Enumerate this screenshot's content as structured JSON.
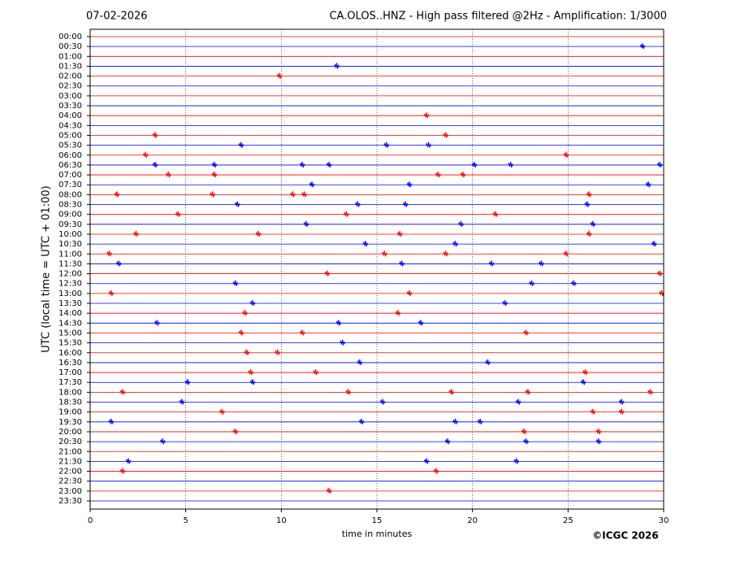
{
  "chart_data": {
    "type": "helicorder",
    "date": "07-02-2026",
    "title": "CA.OLOS..HNZ - High pass filtered @2Hz - Amplification: 1/3000",
    "ylabel": "UTC (local time = UTC + 01:00)",
    "xlabel": "time in minutes",
    "credit": "©ICGC 2026",
    "xlim": [
      0,
      30
    ],
    "xticks": [
      0,
      5,
      10,
      15,
      20,
      25,
      30
    ],
    "grid": true,
    "colors": [
      "#ff0000",
      "#0000ff"
    ],
    "categories": [
      "00:00",
      "00:30",
      "01:00",
      "01:30",
      "02:00",
      "02:30",
      "03:00",
      "03:30",
      "04:00",
      "04:30",
      "05:00",
      "05:30",
      "06:00",
      "06:30",
      "07:00",
      "07:30",
      "08:00",
      "08:30",
      "09:00",
      "09:30",
      "10:00",
      "10:30",
      "11:00",
      "11:30",
      "12:00",
      "12:30",
      "13:00",
      "13:30",
      "14:00",
      "14:30",
      "15:00",
      "15:30",
      "16:00",
      "16:30",
      "17:00",
      "17:30",
      "18:00",
      "18:30",
      "19:00",
      "19:30",
      "20:00",
      "20:30",
      "21:00",
      "21:30",
      "22:00",
      "22:30",
      "23:00",
      "23:30"
    ],
    "events": [
      [],
      [
        28.9
      ],
      [],
      [
        12.9
      ],
      [
        9.9
      ],
      [],
      [],
      [],
      [
        17.6
      ],
      [],
      [
        3.4,
        18.6
      ],
      [
        7.9,
        15.5,
        17.7
      ],
      [
        2.9,
        24.9
      ],
      [
        3.4,
        6.5,
        11.1,
        12.5,
        20.1,
        22.0,
        29.8
      ],
      [
        4.1,
        6.5,
        18.2,
        19.5
      ],
      [
        11.6,
        16.7,
        29.2
      ],
      [
        1.4,
        6.4,
        10.6,
        11.2,
        26.1
      ],
      [
        7.7,
        14.0,
        16.5,
        26.0
      ],
      [
        4.6,
        13.4,
        21.2
      ],
      [
        11.3,
        19.4,
        26.3
      ],
      [
        2.4,
        8.8,
        16.2,
        26.1
      ],
      [
        14.4,
        19.1,
        29.5
      ],
      [
        1.0,
        15.4,
        18.6,
        24.9
      ],
      [
        1.5,
        16.3,
        21.0,
        23.6
      ],
      [
        12.4,
        29.8
      ],
      [
        7.6,
        23.1,
        25.3
      ],
      [
        1.1,
        16.7,
        29.9
      ],
      [
        8.5,
        21.7
      ],
      [
        8.1,
        16.1
      ],
      [
        3.5,
        13.0,
        17.3
      ],
      [
        7.9,
        11.1,
        22.8
      ],
      [
        13.2
      ],
      [
        8.2,
        9.8
      ],
      [
        14.1,
        20.8
      ],
      [
        8.4,
        11.8,
        25.9
      ],
      [
        5.1,
        8.5,
        25.8
      ],
      [
        1.7,
        13.5,
        18.9,
        22.9,
        29.3
      ],
      [
        4.8,
        15.3,
        22.4,
        27.8
      ],
      [
        6.9,
        26.3,
        27.8
      ],
      [
        1.1,
        14.2,
        19.1,
        20.4
      ],
      [
        7.6,
        22.7,
        26.6
      ],
      [
        3.8,
        18.7,
        22.8,
        26.6
      ],
      [],
      [
        2.0,
        17.6,
        22.3
      ],
      [
        1.7,
        18.1
      ],
      [],
      [
        12.5
      ],
      []
    ]
  }
}
